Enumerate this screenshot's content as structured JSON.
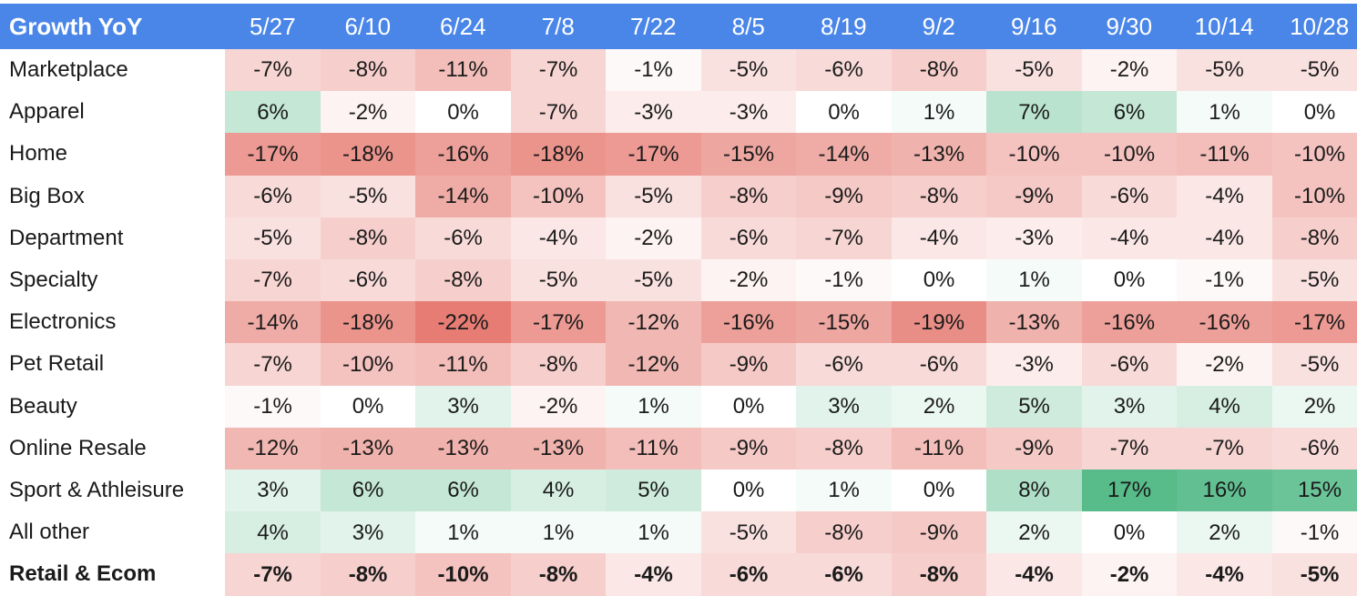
{
  "colors": {
    "header_bg": "#4a86e8",
    "header_text": "#ffffff",
    "negative_max": "#e67c73",
    "positive_max": "#57bb8a",
    "neutral": "#ffffff"
  },
  "chart_data": {
    "type": "heatmap",
    "title": "Growth YoY",
    "columns": [
      "5/27",
      "6/10",
      "6/24",
      "7/8",
      "7/22",
      "8/5",
      "8/19",
      "9/2",
      "9/16",
      "9/30",
      "10/14",
      "10/28"
    ],
    "rows": [
      {
        "label": "Marketplace",
        "bold": false,
        "values": [
          -7,
          -8,
          -11,
          -7,
          -1,
          -5,
          -6,
          -8,
          -5,
          -2,
          -5,
          -5
        ]
      },
      {
        "label": "Apparel",
        "bold": false,
        "values": [
          6,
          -2,
          0,
          -7,
          -3,
          -3,
          0,
          1,
          7,
          6,
          1,
          0
        ]
      },
      {
        "label": "Home",
        "bold": false,
        "values": [
          -17,
          -18,
          -16,
          -18,
          -17,
          -15,
          -14,
          -13,
          -10,
          -10,
          -11,
          -10
        ]
      },
      {
        "label": "Big Box",
        "bold": false,
        "values": [
          -6,
          -5,
          -14,
          -10,
          -5,
          -8,
          -9,
          -8,
          -9,
          -6,
          -4,
          -10
        ]
      },
      {
        "label": "Department",
        "bold": false,
        "values": [
          -5,
          -8,
          -6,
          -4,
          -2,
          -6,
          -7,
          -4,
          -3,
          -4,
          -4,
          -8
        ]
      },
      {
        "label": "Specialty",
        "bold": false,
        "values": [
          -7,
          -6,
          -8,
          -5,
          -5,
          -2,
          -1,
          0,
          1,
          0,
          -1,
          -5
        ]
      },
      {
        "label": "Electronics",
        "bold": false,
        "values": [
          -14,
          -18,
          -22,
          -17,
          -12,
          -16,
          -15,
          -19,
          -13,
          -16,
          -16,
          -17
        ]
      },
      {
        "label": "Pet Retail",
        "bold": false,
        "values": [
          -7,
          -10,
          -11,
          -8,
          -12,
          -9,
          -6,
          -6,
          -3,
          -6,
          -2,
          -5
        ]
      },
      {
        "label": "Beauty",
        "bold": false,
        "values": [
          -1,
          0,
          3,
          -2,
          1,
          0,
          3,
          2,
          5,
          3,
          4,
          2
        ]
      },
      {
        "label": "Online Resale",
        "bold": false,
        "values": [
          -12,
          -13,
          -13,
          -13,
          -11,
          -9,
          -8,
          -11,
          -9,
          -7,
          -7,
          -6
        ]
      },
      {
        "label": "Sport & Athleisure",
        "bold": false,
        "values": [
          3,
          6,
          6,
          4,
          5,
          0,
          1,
          0,
          8,
          17,
          16,
          15
        ]
      },
      {
        "label": "All other",
        "bold": false,
        "values": [
          4,
          3,
          1,
          1,
          1,
          -5,
          -8,
          -9,
          2,
          0,
          2,
          -1
        ]
      },
      {
        "label": "Retail & Ecom",
        "bold": true,
        "values": [
          -7,
          -8,
          -10,
          -8,
          -4,
          -6,
          -6,
          -8,
          -4,
          -2,
          -4,
          -5
        ]
      }
    ],
    "value_suffix": "%",
    "color_scale": {
      "min": -22,
      "mid": 0,
      "max": 17
    }
  }
}
